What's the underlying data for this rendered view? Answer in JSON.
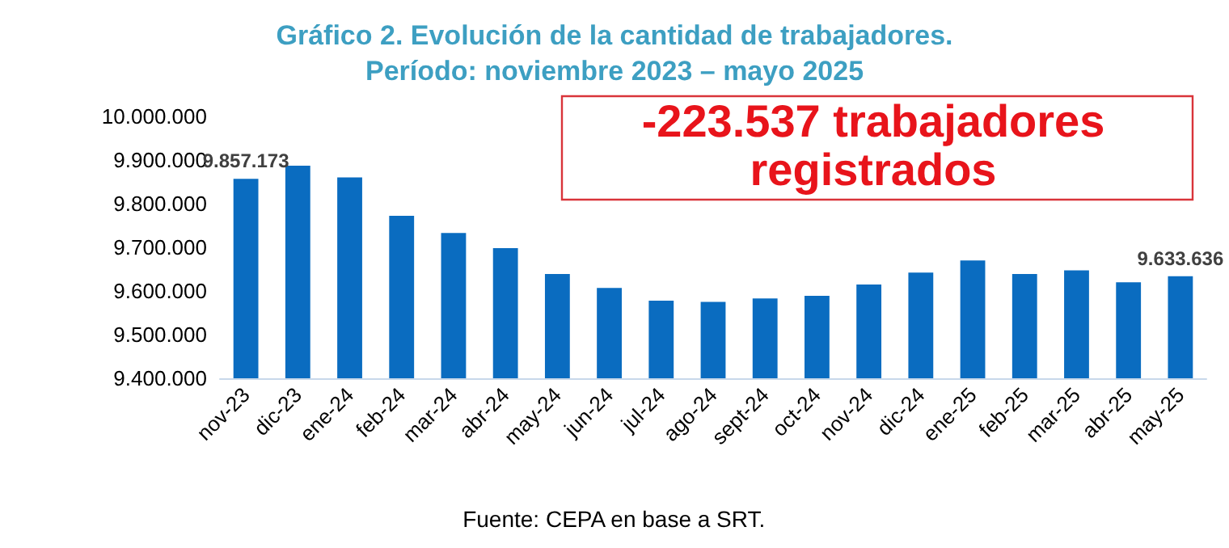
{
  "chart_data": {
    "type": "bar",
    "title": "Gráfico 2. Evolución de la cantidad de trabajadores.\nPeríodo: noviembre 2023 – mayo 2025",
    "categories": [
      "nov-23",
      "dic-23",
      "ene-24",
      "feb-24",
      "mar-24",
      "abr-24",
      "may-24",
      "jun-24",
      "jul-24",
      "ago-24",
      "sept-24",
      "oct-24",
      "nov-24",
      "dic-24",
      "ene-25",
      "feb-25",
      "mar-25",
      "abr-25",
      "may-25"
    ],
    "values": [
      9857173,
      9887000,
      9860000,
      9772000,
      9733000,
      9698000,
      9639000,
      9607000,
      9578000,
      9575000,
      9583000,
      9589000,
      9615000,
      9642000,
      9670000,
      9639000,
      9647000,
      9620000,
      9633636
    ],
    "value_labels": [
      "9.857.173",
      null,
      null,
      null,
      null,
      null,
      null,
      null,
      null,
      null,
      null,
      null,
      null,
      null,
      null,
      null,
      null,
      null,
      "9.633.636"
    ],
    "color": "#0a6cc0",
    "ylim": [
      9400000,
      10000000
    ],
    "yticks": [
      {
        "value": 9400000,
        "label": "9.400.000"
      },
      {
        "value": 9500000,
        "label": "9.500.000"
      },
      {
        "value": 9600000,
        "label": "9.600.000"
      },
      {
        "value": 9700000,
        "label": "9.700.000"
      },
      {
        "value": 9800000,
        "label": "9.800.000"
      },
      {
        "value": 9900000,
        "label": "9.900.000"
      },
      {
        "value": 10000000,
        "label": "10.000.000"
      }
    ],
    "grid": false,
    "annotations": [
      "-223.537 trabajadores\nregistrados",
      "Fuente: CEPA en base a SRT."
    ]
  }
}
